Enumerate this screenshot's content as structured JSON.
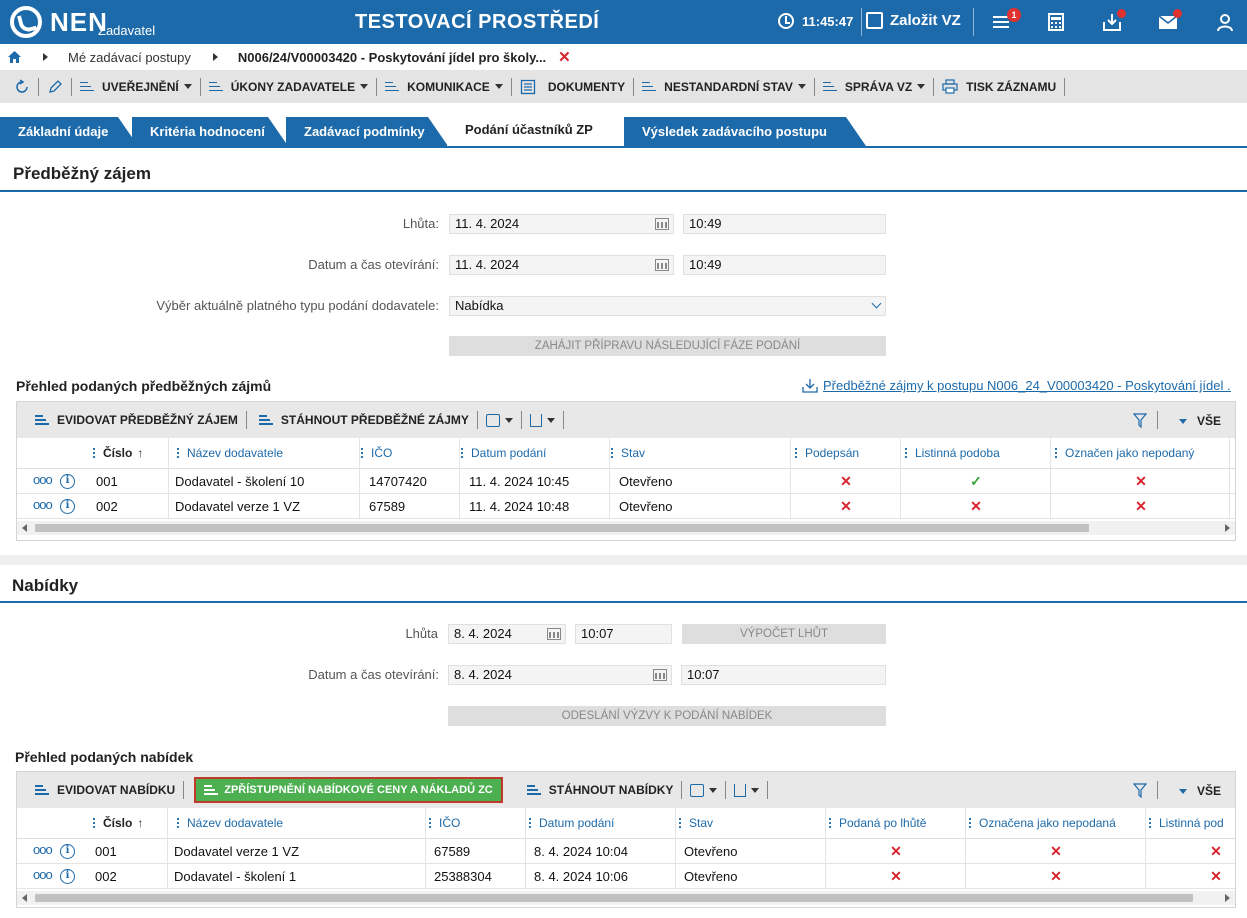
{
  "header": {
    "logo_text": "NEN",
    "logo_sub": "Zadavatel",
    "environment": "TESTOVACÍ PROSTŘEDÍ",
    "time": "11:45:47",
    "new_vz": "Založit VZ",
    "notifications_count": "1"
  },
  "breadcrumb": {
    "items": [
      "Mé zadávací postupy",
      "N006/24/V00003420 - Poskytování jídel pro školy..."
    ],
    "close": "✕"
  },
  "toolbar": {
    "items": [
      "UVEŘEJNĚNÍ",
      "ÚKONY ZADAVATELE",
      "KOMUNIKACE",
      "DOKUMENTY",
      "NESTANDARDNÍ STAV",
      "SPRÁVA VZ",
      "TISK ZÁZNAMU"
    ]
  },
  "tabs": [
    "Základní údaje",
    "Kritéria hodnocení",
    "Zadávací podmínky",
    "Podání účastníků ZP",
    "Výsledek zadávacího postupu"
  ],
  "predbezny": {
    "title": "Předběžný zájem",
    "lhuta_label": "Lhůta:",
    "lhuta_date": "11. 4. 2024",
    "lhuta_time": "10:49",
    "otevirani_label": "Datum a čas otevírání:",
    "otevirani_date": "11. 4. 2024",
    "otevirani_time": "10:49",
    "typ_label": "Výběr aktuálně platného typu podání dodavatele:",
    "typ_value": "Nabídka",
    "button": "ZAHÁJIT PŘÍPRAVU NÁSLEDUJÍCÍ FÁZE PODÁNÍ",
    "list_title": "Přehled podaných předběžných zájmů",
    "link": "Předběžné zájmy k postupu N006_24_V00003420 - Poskytování jídel ...",
    "tool_evidovat": "EVIDOVAT PŘEDBĚŽNÝ ZÁJEM",
    "tool_stahnout": "STÁHNOUT PŘEDBĚŽNÉ ZÁJMY",
    "tool_vse": "VŠE",
    "columns": [
      "Číslo",
      "Název dodavatele",
      "IČO",
      "Datum podání",
      "Stav",
      "Podepsán",
      "Listinná podoba",
      "Označen jako nepodaný"
    ],
    "rows": [
      {
        "cislo": "001",
        "nazev": "Dodavatel - školení 10",
        "ico": "14707420",
        "datum": "11. 4. 2024 10:45",
        "stav": "Otevřeno",
        "podepsan": "✕",
        "listinna": "✓",
        "nepodany": "✕"
      },
      {
        "cislo": "002",
        "nazev": "Dodavatel verze 1 VZ",
        "ico": "67589",
        "datum": "11. 4. 2024 10:48",
        "stav": "Otevřeno",
        "podepsan": "✕",
        "listinna": "✕",
        "nepodany": "✕"
      }
    ]
  },
  "nabidky": {
    "title": "Nabídky",
    "lhuta_label": "Lhůta",
    "lhuta_date": "8. 4. 2024",
    "lhuta_time": "10:07",
    "vypocet": "VÝPOČET LHŮT",
    "otevirani_label": "Datum a čas otevírání:",
    "otevirani_date": "8. 4. 2024",
    "otevirani_time": "10:07",
    "button": "ODESLÁNÍ VÝZVY K PODÁNÍ NABÍDEK",
    "list_title": "Přehled podaných nabídek",
    "tool_evidovat": "EVIDOVAT NABÍDKU",
    "tool_zpristupneni": "ZPŘÍSTUPNĚNÍ NABÍDKOVÉ CENY A NÁKLADŮ ZC",
    "tool_stahnout": "STÁHNOUT NABÍDKY",
    "tool_vse": "VŠE",
    "columns": [
      "Číslo",
      "Název dodavatele",
      "IČO",
      "Datum podání",
      "Stav",
      "Podaná po lhůtě",
      "Označena jako nepodaná",
      "Listinná pod"
    ],
    "rows": [
      {
        "cislo": "001",
        "nazev": "Dodavatel verze 1 VZ",
        "ico": "67589",
        "datum": "8. 4. 2024 10:04",
        "stav": "Otevřeno",
        "po_lhute": "✕",
        "nepodana": "✕",
        "listinna": "✕"
      },
      {
        "cislo": "002",
        "nazev": "Dodavatel - školení 1",
        "ico": "25388304",
        "datum": "8. 4. 2024 10:06",
        "stav": "Otevřeno",
        "po_lhute": "✕",
        "nepodana": "✕",
        "listinna": "✕"
      }
    ]
  },
  "colors": {
    "primary": "#1d6aaa",
    "danger": "#d9232d",
    "success": "#3aa33a",
    "accent_button": "#4caf50"
  }
}
